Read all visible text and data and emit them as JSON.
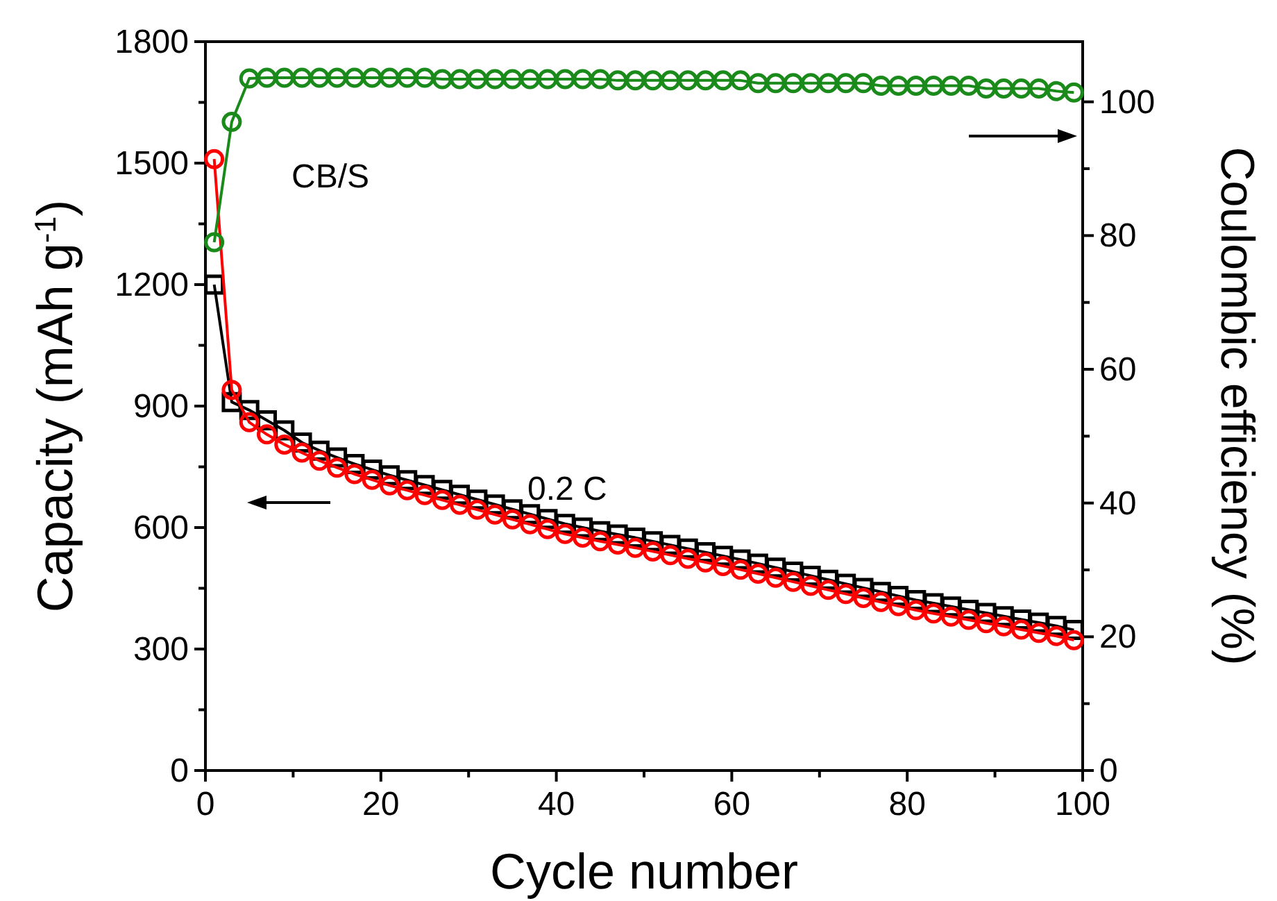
{
  "chart_data": {
    "type": "line",
    "xlabel": "Cycle number",
    "ylabel": "Capacity (mAh g$^{-1}$)",
    "y2label": "Coulombic efficiency (%)",
    "x": [
      1,
      3,
      5,
      7,
      9,
      11,
      13,
      15,
      17,
      19,
      21,
      23,
      25,
      27,
      29,
      31,
      33,
      35,
      37,
      39,
      41,
      43,
      45,
      47,
      49,
      51,
      53,
      55,
      57,
      59,
      61,
      63,
      65,
      67,
      69,
      71,
      73,
      75,
      77,
      79,
      81,
      83,
      85,
      87,
      89,
      91,
      93,
      95,
      97,
      99
    ],
    "xlim": [
      0,
      100
    ],
    "xticks": [
      0,
      {
        "value": 10,
        "label": null
      },
      20,
      {
        "value": 30,
        "label": null
      },
      40,
      {
        "value": 50,
        "label": null
      },
      60,
      {
        "value": 70,
        "label": null
      },
      80,
      {
        "value": 90,
        "label": null
      },
      100
    ],
    "ylim": [
      0,
      1800
    ],
    "yticks": [
      0,
      {
        "value": 150,
        "label": null
      },
      300,
      {
        "value": 450,
        "label": null
      },
      600,
      {
        "value": 750,
        "label": null
      },
      900,
      {
        "value": 1050,
        "label": null
      },
      1200,
      {
        "value": 1350,
        "label": null
      },
      1500,
      {
        "value": 1650,
        "label": null
      },
      1800
    ],
    "y2lim": [
      0,
      109
    ],
    "y2ticks": [
      0,
      {
        "value": 10,
        "label": null
      },
      20,
      {
        "value": 30,
        "label": null
      },
      40,
      {
        "value": 50,
        "label": null
      },
      60,
      {
        "value": 70,
        "label": null
      },
      80,
      {
        "value": 90,
        "label": null
      },
      100
    ],
    "series": [
      {
        "color": "#000000",
        "marker": "square",
        "values": [
          1200,
          910,
          890,
          865,
          840,
          810,
          790,
          773,
          757,
          743,
          729,
          717,
          705,
          693,
          681,
          669,
          657,
          645,
          633,
          621,
          609,
          600,
          591,
          583,
          575,
          566,
          557,
          548,
          539,
          530,
          521,
          511,
          501,
          491,
          481,
          471,
          461,
          451,
          441,
          431,
          421,
          413,
          405,
          397,
          389,
          381,
          373,
          365,
          357,
          347
        ]
      },
      {
        "color": "#ff0000",
        "marker": "circle",
        "values": [
          1510,
          940,
          860,
          830,
          805,
          785,
          765,
          748,
          732,
          718,
          704,
          692,
          680,
          668,
          656,
          644,
          632,
          620,
          608,
          596,
          584,
          575,
          566,
          558,
          550,
          541,
          532,
          523,
          514,
          505,
          496,
          486,
          476,
          466,
          456,
          446,
          436,
          426,
          416,
          406,
          396,
          388,
          380,
          372,
          364,
          356,
          348,
          340,
          332,
          322
        ]
      },
      {
        "color": "#1a8a1a",
        "marker": "circle",
        "axis": "y2",
        "values": [
          79,
          97,
          103.5,
          103.6,
          103.6,
          103.6,
          103.6,
          103.6,
          103.6,
          103.6,
          103.6,
          103.6,
          103.6,
          103.4,
          103.4,
          103.4,
          103.4,
          103.4,
          103.4,
          103.4,
          103.4,
          103.4,
          103.4,
          103.2,
          103.2,
          103.2,
          103.2,
          103.2,
          103.2,
          103.2,
          103.2,
          102.8,
          102.8,
          102.8,
          102.8,
          102.8,
          102.8,
          102.8,
          102.4,
          102.4,
          102.4,
          102.4,
          102.4,
          102.4,
          102,
          102,
          102,
          102,
          101.6,
          101.4
        ]
      }
    ],
    "annotations": [
      "CB/S",
      "0.2 C"
    ]
  }
}
